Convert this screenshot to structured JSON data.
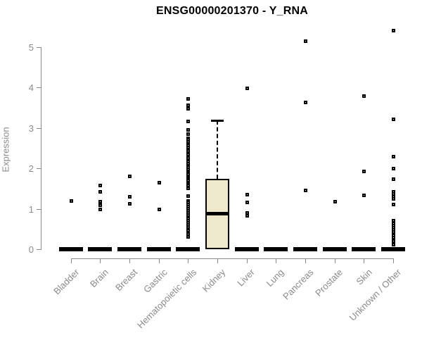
{
  "chart_data": {
    "type": "boxplot",
    "title": "ENSG00000201370 - Y_RNA",
    "ylabel": "Expression",
    "xlabel": "",
    "yticks": [
      0,
      1,
      2,
      3,
      4,
      5
    ],
    "ylim": [
      0,
      5.5
    ],
    "grid": false,
    "legend": "none",
    "colors": {
      "box_fill": "#EEE8CD",
      "box_border": "#000000",
      "marker": "#000000",
      "axis": "#8a8a8a",
      "tick_text": "#8a8a8a",
      "title_text": "#000000"
    },
    "categories": [
      "Bladder",
      "Brain",
      "Breast",
      "Gastric",
      "Hematopoietic cells",
      "Kidney",
      "Liver",
      "Lung",
      "Pancreas",
      "Prostate",
      "Skin",
      "Unknown / Other"
    ],
    "series": [
      {
        "name": "Bladder",
        "box": {
          "q1": 0,
          "median": 0,
          "q3": 0,
          "whisker_low": 0,
          "whisker_high": 0
        },
        "points": [
          1.21
        ]
      },
      {
        "name": "Brain",
        "box": {
          "q1": 0,
          "median": 0,
          "q3": 0,
          "whisker_low": 0,
          "whisker_high": 0
        },
        "points": [
          1.58,
          1.42,
          1.18,
          1.09,
          1.0
        ]
      },
      {
        "name": "Breast",
        "box": {
          "q1": 0,
          "median": 0,
          "q3": 0,
          "whisker_low": 0,
          "whisker_high": 0
        },
        "points": [
          1.81,
          1.3,
          1.14
        ]
      },
      {
        "name": "Gastric",
        "box": {
          "q1": 0,
          "median": 0,
          "q3": 0,
          "whisker_low": 0,
          "whisker_high": 0
        },
        "points": [
          1.65,
          0.99
        ]
      },
      {
        "name": "Hematopoietic cells",
        "box": {
          "q1": 0,
          "median": 0,
          "q3": 0,
          "whisker_low": 0,
          "whisker_high": 0
        },
        "points": [
          3.73,
          3.58,
          3.49,
          3.17,
          2.97,
          2.86,
          2.75,
          2.71,
          2.66,
          2.62,
          2.57,
          2.53,
          2.48,
          2.44,
          2.39,
          2.35,
          2.3,
          2.26,
          2.21,
          2.17,
          2.12,
          2.04,
          1.99,
          1.94,
          1.9,
          1.86,
          1.82,
          1.78,
          1.74,
          1.7,
          1.66,
          1.62,
          1.58,
          1.54,
          1.51,
          1.33,
          1.21,
          1.16,
          1.11,
          1.06,
          1.01,
          0.96,
          0.91,
          0.86,
          0.81,
          0.76,
          0.71,
          0.66,
          0.61,
          0.56,
          0.51,
          0.47,
          0.38,
          0.31
        ]
      },
      {
        "name": "Kidney",
        "box": {
          "q1": 0,
          "median": 0.89,
          "q3": 1.74,
          "whisker_low": 0,
          "whisker_high": 3.19
        },
        "points": []
      },
      {
        "name": "Liver",
        "box": {
          "q1": 0,
          "median": 0,
          "q3": 0,
          "whisker_low": 0,
          "whisker_high": 0
        },
        "points": [
          3.99,
          1.36,
          1.17,
          0.91,
          0.84
        ]
      },
      {
        "name": "Lung",
        "box": {
          "q1": 0,
          "median": 0,
          "q3": 0,
          "whisker_low": 0,
          "whisker_high": 0
        },
        "points": []
      },
      {
        "name": "Pancreas",
        "box": {
          "q1": 0,
          "median": 0,
          "q3": 0,
          "whisker_low": 0,
          "whisker_high": 0
        },
        "points": [
          5.15,
          3.64,
          1.46
        ]
      },
      {
        "name": "Prostate",
        "box": {
          "q1": 0,
          "median": 0,
          "q3": 0,
          "whisker_low": 0,
          "whisker_high": 0
        },
        "points": [
          1.19
        ]
      },
      {
        "name": "Skin",
        "box": {
          "q1": 0,
          "median": 0,
          "q3": 0,
          "whisker_low": 0,
          "whisker_high": 0
        },
        "points": [
          3.79,
          1.94,
          1.34
        ]
      },
      {
        "name": "Unknown / Other",
        "box": {
          "q1": 0,
          "median": 0,
          "q3": 0,
          "whisker_low": 0,
          "whisker_high": 0
        },
        "points": [
          5.42,
          3.22,
          2.3,
          2.0,
          1.74,
          1.42,
          1.37,
          1.31,
          1.26,
          1.11,
          0.71,
          0.64,
          0.59,
          0.54,
          0.49,
          0.44,
          0.39,
          0.34,
          0.29,
          0.24,
          0.21,
          0.12
        ]
      }
    ]
  }
}
